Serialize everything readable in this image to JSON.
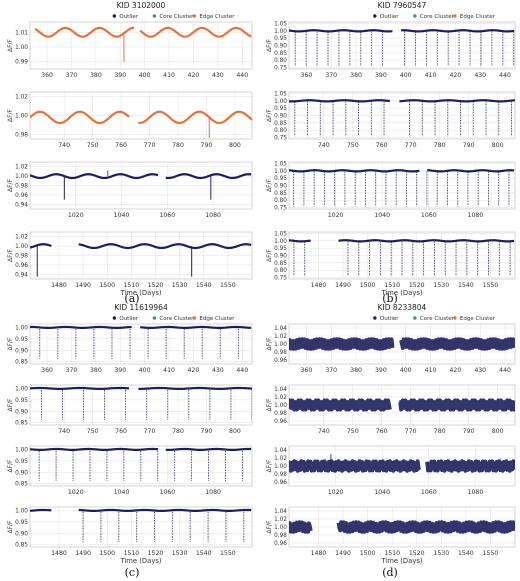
{
  "figure": {
    "captions": [
      "(a)",
      "(b)",
      "(c)",
      "(d)"
    ]
  },
  "chart_data": [
    {
      "type": "scatter",
      "title": "KID 3102000",
      "xlabel": "Time (Days)",
      "ylabel": "ΔF/F",
      "legend": {
        "position": "top-right",
        "entries": [
          "Outlier",
          "Core Cluster",
          "Edge Cluster"
        ]
      },
      "colors": {
        "Outlier": "#1c1f5c",
        "Core Cluster": "#2e9e6b",
        "Edge Cluster": "#e8733a"
      },
      "grid": true,
      "panels": [
        {
          "xlim": [
            353,
            444
          ],
          "ylim": [
            0.985,
            1.017
          ],
          "xticks": [
            360,
            370,
            380,
            390,
            400,
            410,
            420,
            430,
            440
          ],
          "yticks": [
            0.99,
            1.0,
            1.01
          ],
          "ytick_labels": [
            "0.99",
            "1.00",
            "1.01"
          ],
          "color": "#e8733a",
          "series": {
            "base": 1.01,
            "amp": 0.003,
            "period": 14,
            "gaps": [
              [
                353,
                355
              ],
              [
                396,
                398
              ]
            ],
            "dips": [
              {
                "x": 391.5,
                "depth": 0.02
              }
            ]
          }
        },
        {
          "xlim": [
            728,
            806
          ],
          "ylim": [
            0.975,
            1.025
          ],
          "xticks": [
            740,
            750,
            760,
            770,
            780,
            790,
            800
          ],
          "yticks": [
            0.98,
            1.0,
            1.02
          ],
          "ytick_labels": [
            "0.98",
            "1.00",
            "1.02"
          ],
          "color": "#e8733a",
          "series": {
            "base": 0.998,
            "amp": 0.006,
            "period": 14,
            "gaps": [
              [
                763,
                766
              ]
            ],
            "dips": [
              {
                "x": 791,
                "depth": 0.022
              }
            ]
          }
        },
        {
          "xlim": [
            1000,
            1097
          ],
          "ylim": [
            0.93,
            1.03
          ],
          "xticks": [
            1020,
            1040,
            1060,
            1080
          ],
          "yticks": [
            0.94,
            0.96,
            0.98,
            1.0,
            1.02
          ],
          "ytick_labels": [
            "0.94",
            "0.96",
            "0.98",
            "1.00",
            "1.02"
          ],
          "color": "#1c1f5c",
          "series": {
            "base": 1.0,
            "amp": 0.004,
            "period": 14,
            "gaps": [
              [
                1056,
                1059
              ]
            ],
            "dips": [
              {
                "x": 1015,
                "depth": 0.05
              },
              {
                "x": 1079,
                "depth": 0.05
              }
            ],
            "spikes": [
              {
                "x": 1034,
                "height": 0.012
              }
            ]
          }
        },
        {
          "xlim": [
            1468,
            1560
          ],
          "ylim": [
            0.93,
            1.03
          ],
          "xticks": [
            1480,
            1490,
            1500,
            1510,
            1520,
            1530,
            1540,
            1550
          ],
          "yticks": [
            0.94,
            0.96,
            0.98,
            1.0,
            1.02
          ],
          "ytick_labels": [
            "0.94",
            "0.96",
            "0.98",
            "1.00",
            "1.02"
          ],
          "color": "#1c1f5c",
          "series": {
            "base": 1.0,
            "amp": 0.004,
            "period": 14,
            "gaps": [
              [
                1477,
                1488
              ]
            ],
            "dips": [
              {
                "x": 1471,
                "depth": 0.065
              },
              {
                "x": 1535,
                "depth": 0.065
              }
            ]
          }
        }
      ]
    },
    {
      "type": "scatter",
      "title": "KID 7960547",
      "xlabel": "Time (Days)",
      "ylabel": "ΔF/F",
      "legend": {
        "position": "top-right",
        "entries": [
          "Outlier",
          "Core Cluster",
          "Edge Cluster"
        ]
      },
      "colors": {
        "Outlier": "#1c1f5c",
        "Core Cluster": "#2e9e6b",
        "Edge Cluster": "#e8733a"
      },
      "grid": true,
      "panels": [
        {
          "xlim": [
            353,
            444
          ],
          "ylim": [
            0.74,
            1.06
          ],
          "xticks": [
            360,
            370,
            380,
            390,
            400,
            410,
            420,
            430,
            440
          ],
          "yticks": [
            0.75,
            0.8,
            0.85,
            0.9,
            0.95,
            1.0,
            1.05
          ],
          "ytick_labels": [
            "0.75",
            "0.80",
            "0.85",
            "0.90",
            "0.95",
            "1.00",
            "1.05"
          ],
          "color": "#1c1f5c",
          "series": {
            "base": 1.0,
            "amp": 0.004,
            "period": 12,
            "gaps": [
              [
                395,
                398
              ]
            ],
            "transit_period": 4.4,
            "transit_start": 355.5,
            "transit_depth": 0.24
          }
        },
        {
          "xlim": [
            728,
            806
          ],
          "ylim": [
            0.74,
            1.06
          ],
          "xticks": [
            740,
            750,
            760,
            770,
            780,
            790,
            800
          ],
          "yticks": [
            0.75,
            0.8,
            0.85,
            0.9,
            0.95,
            1.0,
            1.05
          ],
          "ytick_labels": [
            "0.75",
            "0.80",
            "0.85",
            "0.90",
            "0.95",
            "1.00",
            "1.05"
          ],
          "color": "#1c1f5c",
          "series": {
            "base": 1.0,
            "amp": 0.004,
            "period": 12,
            "gaps": [
              [
                763,
                766
              ]
            ],
            "transit_period": 4.4,
            "transit_start": 730,
            "transit_depth": 0.24
          }
        },
        {
          "xlim": [
            1000,
            1097
          ],
          "ylim": [
            0.74,
            1.06
          ],
          "xticks": [
            1020,
            1040,
            1060,
            1080
          ],
          "yticks": [
            0.75,
            0.8,
            0.85,
            0.9,
            0.95,
            1.0,
            1.05
          ],
          "ytick_labels": [
            "0.75",
            "0.80",
            "0.85",
            "0.90",
            "0.95",
            "1.00",
            "1.05"
          ],
          "color": "#1c1f5c",
          "series": {
            "base": 1.0,
            "amp": 0.004,
            "period": 12,
            "gaps": [
              [
                1056,
                1059
              ]
            ],
            "transit_period": 4.4,
            "transit_start": 1002,
            "transit_depth": 0.24
          }
        },
        {
          "xlim": [
            1468,
            1560
          ],
          "ylim": [
            0.74,
            1.06
          ],
          "xticks": [
            1480,
            1490,
            1500,
            1510,
            1520,
            1530,
            1540,
            1550
          ],
          "yticks": [
            0.75,
            0.8,
            0.85,
            0.9,
            0.95,
            1.0,
            1.05
          ],
          "ytick_labels": [
            "0.75",
            "0.80",
            "0.85",
            "0.90",
            "0.95",
            "1.00",
            "1.05"
          ],
          "color": "#1c1f5c",
          "series": {
            "base": 1.0,
            "amp": 0.004,
            "period": 12,
            "gaps": [
              [
                1477,
                1488
              ]
            ],
            "transit_period": 4.4,
            "transit_start": 1470,
            "transit_depth": 0.24
          }
        }
      ]
    },
    {
      "type": "scatter",
      "title": "KID 11619964",
      "xlabel": "Time (Days)",
      "ylabel": "ΔF/F",
      "legend": {
        "position": "top-right",
        "entries": [
          "Outlier",
          "Core Cluster",
          "Edge Cluster"
        ]
      },
      "colors": {
        "Outlier": "#1c1f5c",
        "Core Cluster": "#2e9e6b",
        "Edge Cluster": "#e8733a"
      },
      "grid": true,
      "panels": [
        {
          "xlim": [
            353,
            444
          ],
          "ylim": [
            0.84,
            1.015
          ],
          "xticks": [
            360,
            370,
            380,
            390,
            400,
            410,
            420,
            430,
            440
          ],
          "yticks": [
            0.85,
            0.9,
            0.95,
            1.0
          ],
          "ytick_labels": [
            "0.85",
            "0.90",
            "0.95",
            "1.00"
          ],
          "color": "#1c1f5c",
          "series": {
            "base": 1.0,
            "amp": 0.002,
            "period": 14,
            "gaps": [
              [
                395,
                398
              ]
            ],
            "transit_period": 7.4,
            "transit_start": 357,
            "transit_depth": 0.14
          }
        },
        {
          "xlim": [
            728,
            806
          ],
          "ylim": [
            0.84,
            1.015
          ],
          "xticks": [
            740,
            750,
            760,
            770,
            780,
            790,
            800
          ],
          "yticks": [
            0.85,
            0.9,
            0.95,
            1.0
          ],
          "ytick_labels": [
            "0.85",
            "0.90",
            "0.95",
            "1.00"
          ],
          "color": "#1c1f5c",
          "series": {
            "base": 1.0,
            "amp": 0.002,
            "period": 14,
            "gaps": [
              [
                763,
                766
              ]
            ],
            "transit_period": 7.4,
            "transit_start": 732,
            "transit_depth": 0.14
          }
        },
        {
          "xlim": [
            1000,
            1097
          ],
          "ylim": [
            0.84,
            1.015
          ],
          "xticks": [
            1020,
            1040,
            1060,
            1080
          ],
          "yticks": [
            0.85,
            0.9,
            0.95,
            1.0
          ],
          "ytick_labels": [
            "0.85",
            "0.90",
            "0.95",
            "1.00"
          ],
          "color": "#1c1f5c",
          "series": {
            "base": 1.0,
            "amp": 0.002,
            "period": 14,
            "gaps": [
              [
                1056,
                1059
              ]
            ],
            "transit_period": 7.4,
            "transit_start": 1004,
            "transit_depth": 0.14
          }
        },
        {
          "xlim": [
            1468,
            1560
          ],
          "ylim": [
            0.84,
            1.015
          ],
          "xticks": [
            1480,
            1490,
            1500,
            1510,
            1520,
            1530,
            1540,
            1550
          ],
          "yticks": [
            0.85,
            0.9,
            0.95,
            1.0
          ],
          "ytick_labels": [
            "0.85",
            "0.90",
            "0.95",
            "1.00"
          ],
          "color": "#1c1f5c",
          "series": {
            "base": 1.0,
            "amp": 0.002,
            "period": 14,
            "gaps": [
              [
                1477,
                1488
              ]
            ],
            "transit_period": 7.4,
            "transit_start": 1490,
            "transit_depth": 0.14
          }
        }
      ]
    },
    {
      "type": "scatter",
      "title": "KID 8233804",
      "xlabel": "Time (Days)",
      "ylabel": "ΔF/F",
      "legend": {
        "position": "top-right",
        "entries": [
          "Outlier",
          "Core Cluster",
          "Edge Cluster"
        ]
      },
      "colors": {
        "Outlier": "#1c1f5c",
        "Core Cluster": "#2e9e6b",
        "Edge Cluster": "#e8733a"
      },
      "grid": true,
      "panels": [
        {
          "xlim": [
            353,
            444
          ],
          "ylim": [
            0.95,
            1.05
          ],
          "xticks": [
            360,
            370,
            380,
            390,
            400,
            410,
            420,
            430,
            440
          ],
          "yticks": [
            0.96,
            0.98,
            1.0,
            1.02,
            1.04
          ],
          "ytick_labels": [
            "0.96",
            "0.98",
            "1.00",
            "1.02",
            "1.04"
          ],
          "color": "#1c1f5c",
          "series": {
            "base": 1.0,
            "amp": 0.012,
            "period": 1.0,
            "gaps": [
              [
                395,
                398
              ]
            ],
            "band": true
          }
        },
        {
          "xlim": [
            728,
            806
          ],
          "ylim": [
            0.95,
            1.05
          ],
          "xticks": [
            740,
            750,
            760,
            770,
            780,
            790,
            800
          ],
          "yticks": [
            0.96,
            0.98,
            1.0,
            1.02,
            1.04
          ],
          "ytick_labels": [
            "0.96",
            "0.98",
            "1.00",
            "1.02",
            "1.04"
          ],
          "color": "#1c1f5c",
          "series": {
            "base": 1.0,
            "amp": 0.012,
            "period": 1.0,
            "gaps": [
              [
                763,
                766
              ]
            ],
            "band": true
          }
        },
        {
          "xlim": [
            1000,
            1097
          ],
          "ylim": [
            0.95,
            1.05
          ],
          "xticks": [
            1020,
            1040,
            1060,
            1080
          ],
          "yticks": [
            0.96,
            0.98,
            1.0,
            1.02,
            1.04
          ],
          "ytick_labels": [
            "0.96",
            "0.98",
            "1.00",
            "1.02",
            "1.04"
          ],
          "color": "#1c1f5c",
          "series": {
            "base": 1.0,
            "amp": 0.012,
            "period": 1.0,
            "gaps": [
              [
                1056,
                1059
              ]
            ],
            "band": true,
            "spikes": [
              {
                "x": 1018,
                "height": 0.03
              }
            ]
          }
        },
        {
          "xlim": [
            1468,
            1560
          ],
          "ylim": [
            0.95,
            1.05
          ],
          "xticks": [
            1480,
            1490,
            1500,
            1510,
            1520,
            1530,
            1540,
            1550
          ],
          "yticks": [
            0.96,
            0.98,
            1.0,
            1.02,
            1.04
          ],
          "ytick_labels": [
            "0.96",
            "0.98",
            "1.00",
            "1.02",
            "1.04"
          ],
          "color": "#1c1f5c",
          "series": {
            "base": 1.0,
            "amp": 0.012,
            "period": 1.0,
            "gaps": [
              [
                1477,
                1488
              ]
            ],
            "band": true
          }
        }
      ]
    }
  ]
}
